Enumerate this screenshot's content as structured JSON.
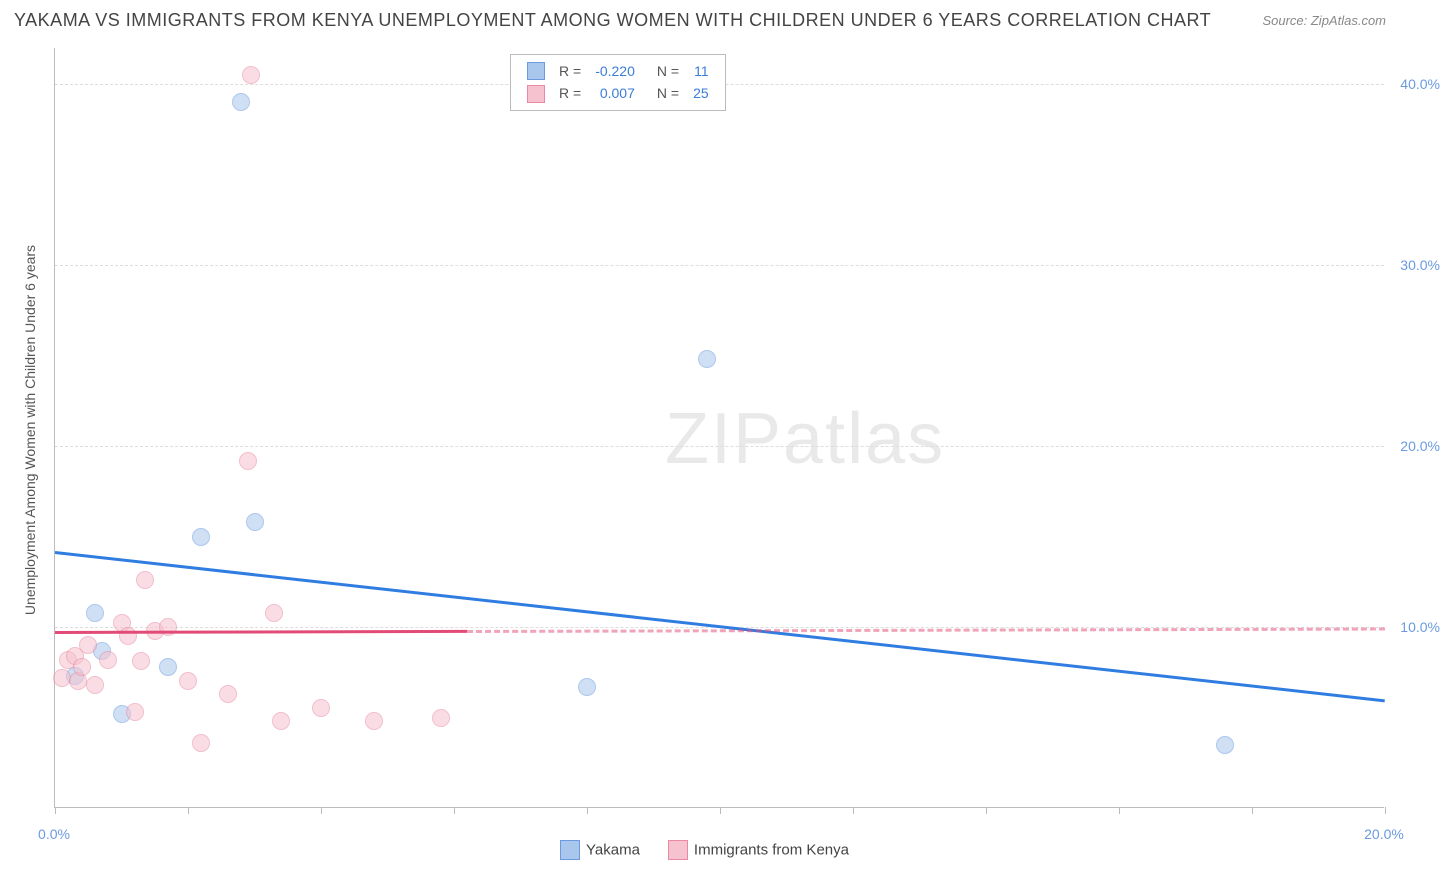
{
  "header": {
    "title": "YAKAMA VS IMMIGRANTS FROM KENYA UNEMPLOYMENT AMONG WOMEN WITH CHILDREN UNDER 6 YEARS CORRELATION CHART",
    "source": "Source: ZipAtlas.com"
  },
  "chart": {
    "type": "scatter",
    "y_axis_title": "Unemployment Among Women with Children Under 6 years",
    "xlim": [
      0,
      20
    ],
    "ylim": [
      0,
      42
    ],
    "x_ticks": [
      0,
      2,
      4,
      6,
      8,
      10,
      12,
      14,
      16,
      18,
      20
    ],
    "x_tick_labels": {
      "0": "0.0%",
      "20": "20.0%"
    },
    "y_grid": [
      10,
      20,
      30,
      40
    ],
    "y_tick_labels": {
      "10": "10.0%",
      "20": "20.0%",
      "30": "30.0%",
      "40": "40.0%"
    },
    "background_color": "#ffffff",
    "grid_color": "#dddddd",
    "axis_color": "#bbbbbb",
    "tick_label_color": "#6b9ae0",
    "point_radius": 9,
    "point_opacity": 0.55,
    "series": [
      {
        "name": "Yakama",
        "fill": "#a9c7ec",
        "stroke": "#6b9ae0",
        "r_value": "-0.220",
        "n_value": "11",
        "trend": {
          "y_at_x0": 14.2,
          "y_at_x20": 6.0,
          "color": "#2f7de1",
          "width": 3,
          "dash": "solid"
        },
        "points": [
          [
            0.3,
            7.3
          ],
          [
            0.6,
            10.8
          ],
          [
            0.7,
            8.7
          ],
          [
            1.0,
            5.2
          ],
          [
            1.7,
            7.8
          ],
          [
            2.2,
            15.0
          ],
          [
            2.8,
            39.0
          ],
          [
            3.0,
            15.8
          ],
          [
            8.0,
            6.7
          ],
          [
            9.8,
            24.8
          ],
          [
            17.6,
            3.5
          ]
        ]
      },
      {
        "name": "Immigrants from Kenya",
        "fill": "#f6c2cf",
        "stroke": "#e98aa2",
        "r_value": "0.007",
        "n_value": "25",
        "trend": {
          "y_at_x0": 9.8,
          "y_at_x20": 10.0,
          "color": "#e24b78",
          "width": 3,
          "dash_solid_until_x": 6.2
        },
        "points": [
          [
            0.1,
            7.2
          ],
          [
            0.2,
            8.2
          ],
          [
            0.3,
            8.4
          ],
          [
            0.35,
            7.0
          ],
          [
            0.4,
            7.8
          ],
          [
            0.5,
            9.0
          ],
          [
            0.6,
            6.8
          ],
          [
            0.8,
            8.2
          ],
          [
            1.0,
            10.2
          ],
          [
            1.1,
            9.5
          ],
          [
            1.2,
            5.3
          ],
          [
            1.3,
            8.1
          ],
          [
            1.35,
            12.6
          ],
          [
            1.5,
            9.8
          ],
          [
            1.7,
            10.0
          ],
          [
            2.0,
            7.0
          ],
          [
            2.2,
            3.6
          ],
          [
            2.6,
            6.3
          ],
          [
            2.9,
            19.2
          ],
          [
            2.95,
            40.5
          ],
          [
            3.3,
            10.8
          ],
          [
            3.4,
            4.8
          ],
          [
            4.0,
            5.5
          ],
          [
            4.8,
            4.8
          ],
          [
            5.8,
            5.0
          ]
        ]
      }
    ],
    "watermark": {
      "text_bold": "ZIP",
      "text_thin": "atlas"
    }
  }
}
